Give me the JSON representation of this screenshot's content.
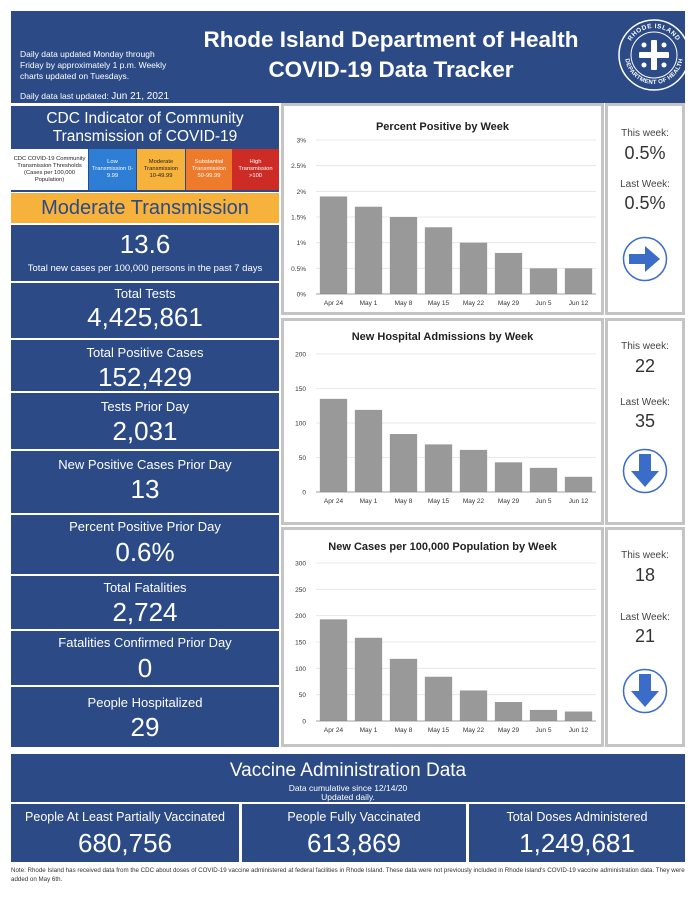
{
  "header": {
    "note": "Daily data updated Monday through Friday by approximately 1 p.m. Weekly charts updated on Tuesdays.",
    "updated_label": "Daily data last updated:",
    "updated_date": "Jun 21, 2021",
    "title_line1": "Rhode Island Department of Health",
    "title_line2": "COVID-19 Data Tracker",
    "seal_text_top": "RHODE ISLAND",
    "seal_text_bottom": "DEPARTMENT OF HEALTH"
  },
  "cdc": {
    "title": "CDC Indicator of Community Transmission of COVID-19",
    "legend": [
      {
        "label": "CDC COVID-19 Community Transmission Thresholds (Cases per 100,000 Population)"
      },
      {
        "label": "Low Transmission 0-9.99"
      },
      {
        "label": "Moderate Transmission 10-49.99"
      },
      {
        "label": "Substantial Transmission 50-99.99"
      },
      {
        "label": "High Transmission >100"
      }
    ],
    "level": "Moderate Transmission",
    "value": "13.6",
    "value_label": "Total new cases per 100,000 persons in the past 7 days"
  },
  "stats": [
    {
      "label": "Total Tests",
      "value": "4,425,861"
    },
    {
      "label": "Total Positive Cases",
      "value": "152,429"
    },
    {
      "label": "Tests Prior Day",
      "value": "2,031"
    },
    {
      "label": "New Positive Cases Prior Day",
      "value": "13"
    },
    {
      "label": "Percent Positive Prior Day",
      "value": "0.6%"
    },
    {
      "label": "Total Fatalities",
      "value": "2,724"
    },
    {
      "label": "Fatalities Confirmed Prior Day",
      "value": "0"
    },
    {
      "label": "People Hospitalized",
      "value": "29"
    }
  ],
  "weekly": [
    {
      "this_week_label": "This week:",
      "this_week": "0.5%",
      "last_week_label": "Last Week:",
      "last_week": "0.5%",
      "arrow": "arrow-right-icon"
    },
    {
      "this_week_label": "This week:",
      "this_week": "22",
      "last_week_label": "Last Week:",
      "last_week": "35",
      "arrow": "arrow-down-icon"
    },
    {
      "this_week_label": "This week:",
      "this_week": "18",
      "last_week_label": "Last Week:",
      "last_week": "21",
      "arrow": "arrow-down-icon"
    }
  ],
  "chart_data": [
    {
      "type": "bar",
      "title": "Percent Positive by Week",
      "categories": [
        "Apr 24",
        "May 1",
        "May 8",
        "May 15",
        "May 22",
        "May 29",
        "Jun 5",
        "Jun 12"
      ],
      "values": [
        1.9,
        1.7,
        1.5,
        1.3,
        1.0,
        0.8,
        0.5,
        0.5
      ],
      "yticks": [
        "0%",
        "0.5%",
        "1%",
        "1.5%",
        "2%",
        "2.5%",
        "3%"
      ],
      "ylim": [
        0,
        3
      ],
      "color": "#999999"
    },
    {
      "type": "bar",
      "title": "New Hospital Admissions by Week",
      "categories": [
        "Apr 24",
        "May 1",
        "May 8",
        "May 15",
        "May 22",
        "May 29",
        "Jun 5",
        "Jun 12"
      ],
      "values": [
        135,
        119,
        84,
        69,
        61,
        43,
        35,
        22
      ],
      "yticks": [
        "0",
        "50",
        "100",
        "150",
        "200"
      ],
      "ylim": [
        0,
        200
      ],
      "color": "#999999"
    },
    {
      "type": "bar",
      "title": "New Cases per 100,000 Population by Week",
      "categories": [
        "Apr 24",
        "May 1",
        "May 8",
        "May 15",
        "May 22",
        "May 29",
        "Jun 5",
        "Jun 12"
      ],
      "values": [
        193,
        158,
        118,
        84,
        58,
        36,
        21,
        18
      ],
      "yticks": [
        "0",
        "50",
        "100",
        "150",
        "200",
        "250",
        "300"
      ],
      "ylim": [
        0,
        300
      ],
      "color": "#999999"
    }
  ],
  "vaccine": {
    "title": "Vaccine Administration Data",
    "sub1": "Data cumulative since 12/14/20",
    "sub2": "Updated daily.",
    "items": [
      {
        "label": "People At Least Partially Vaccinated",
        "value": "680,756"
      },
      {
        "label": "People Fully Vaccinated",
        "value": "613,869"
      },
      {
        "label": "Total Doses Administered",
        "value": "1,249,681"
      }
    ]
  },
  "note": "Note: Rhode Island has received data from the CDC about doses of COVID-19 vaccine administered at federal facilities in Rhode Island. These data were not previously included in Rhode Island's COVID-19 vaccine administration data. They were added on May 6th.",
  "colors": {
    "navy": "#2b4a86",
    "moderate": "#f6b23a",
    "low": "#2e7ed6",
    "substantial": "#ee7a2b",
    "high": "#cc2b26",
    "arrow": "#3a6cc8"
  }
}
